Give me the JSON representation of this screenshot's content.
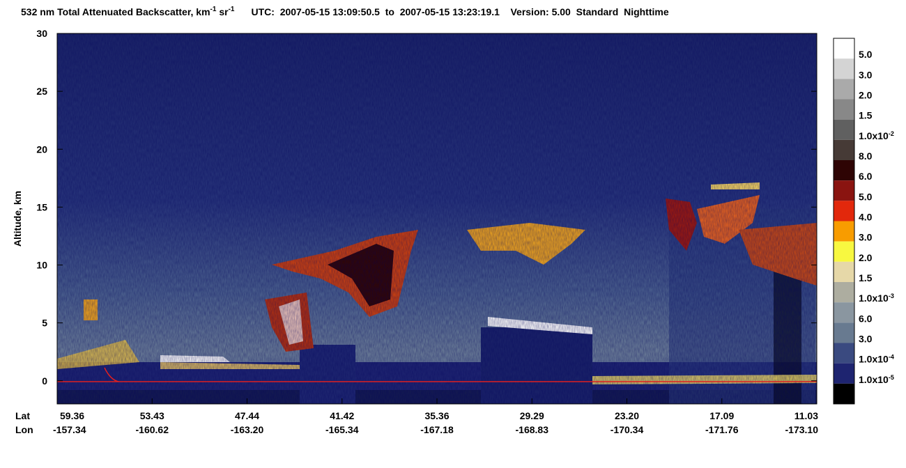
{
  "chart_data": {
    "type": "curtain",
    "title_parts": [
      "532 nm Total Attenuated Backscatter, km",
      "-1",
      " sr",
      "-1",
      "UTC:  2007-05-15 13:09:50.5  to  2007-05-15 13:23:19.1    Version: 5.00  Standard  Nighttime"
    ],
    "y_label": "Altitude, km",
    "ylim": [
      -2,
      30
    ],
    "yticks": [
      0,
      5,
      10,
      15,
      20,
      25,
      30
    ],
    "x_row_labels": [
      "Lat",
      "Lon"
    ],
    "lat": [
      "59.36",
      "53.43",
      "47.44",
      "41.42",
      "35.36",
      "29.29",
      "23.20",
      "17.09",
      "11.03"
    ],
    "lon": [
      "-157.34",
      "-160.62",
      "-163.20",
      "-165.34",
      "-167.18",
      "-168.83",
      "-170.34",
      "-171.76",
      "-173.10"
    ],
    "colorbar_labels": [
      {
        "text": "5.0"
      },
      {
        "text": "3.0"
      },
      {
        "text": "2.0"
      },
      {
        "text": "1.5"
      },
      {
        "text": "1.0x10",
        "exponent": "-2"
      },
      {
        "text": "8.0"
      },
      {
        "text": "6.0"
      },
      {
        "text": "5.0"
      },
      {
        "text": "4.0"
      },
      {
        "text": "3.0"
      },
      {
        "text": "2.0"
      },
      {
        "text": "1.5"
      },
      {
        "text": "1.0x10",
        "exponent": "-3"
      },
      {
        "text": "6.0"
      },
      {
        "text": "3.0"
      },
      {
        "text": "1.0x10",
        "exponent": "-4"
      },
      {
        "text": "1.0x10",
        "exponent": "-5"
      }
    ],
    "colorbar_colors": [
      "#ffffff",
      "#d4d4d4",
      "#aaaaaa",
      "#888888",
      "#606060",
      "#463a36",
      "#2e0404",
      "#8a1410",
      "#e2280c",
      "#f89c00",
      "#f8f840",
      "#e6d8a8",
      "#adada0",
      "#8a96a0",
      "#687a90",
      "#3a4a80",
      "#1e2470",
      "#000000"
    ]
  }
}
